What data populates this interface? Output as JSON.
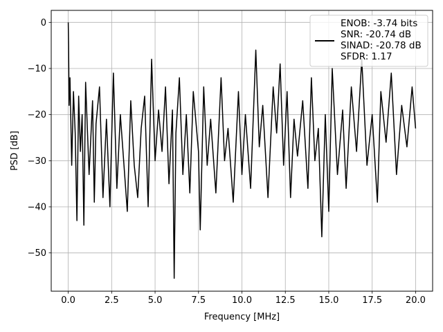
{
  "chart_data": {
    "type": "line",
    "title": "",
    "xlabel": "Frequency [MHz]",
    "ylabel": "PSD [dB]",
    "xlim": [
      -0.98,
      20.98
    ],
    "ylim": [
      -58.3,
      2.6
    ],
    "x_ticks": [
      0.0,
      2.5,
      5.0,
      7.5,
      10.0,
      12.5,
      15.0,
      17.5,
      20.0
    ],
    "x_tick_labels": [
      "0.0",
      "2.5",
      "5.0",
      "7.5",
      "10.0",
      "12.5",
      "15.0",
      "17.5",
      "20.0"
    ],
    "y_ticks": [
      0,
      -10,
      -20,
      -30,
      -40,
      -50
    ],
    "y_tick_labels": [
      "0",
      "−10",
      "−20",
      "−30",
      "−40",
      "−50"
    ],
    "grid": true,
    "legend_position": "top-right",
    "series": [
      {
        "name": "ENOB: -3.74 bits\nSNR: -20.74 dB\nSINAD: -20.78 dB\nSFDR: 1.17",
        "color": "#000000",
        "x": [
          0.0,
          0.02,
          0.05,
          0.1,
          0.2,
          0.3,
          0.4,
          0.5,
          0.6,
          0.7,
          0.8,
          0.9,
          1.0,
          1.2,
          1.4,
          1.5,
          1.6,
          1.8,
          2.0,
          2.2,
          2.4,
          2.5,
          2.6,
          2.8,
          3.0,
          3.4,
          3.6,
          3.8,
          4.0,
          4.2,
          4.4,
          4.6,
          4.8,
          5.0,
          5.2,
          5.4,
          5.6,
          5.8,
          6.0,
          6.1,
          6.2,
          6.4,
          6.6,
          6.8,
          7.0,
          7.2,
          7.5,
          7.6,
          7.8,
          8.0,
          8.2,
          8.5,
          8.8,
          9.0,
          9.2,
          9.5,
          9.8,
          10.0,
          10.2,
          10.5,
          10.8,
          11.0,
          11.2,
          11.5,
          11.8,
          12.0,
          12.2,
          12.4,
          12.6,
          12.8,
          13.0,
          13.2,
          13.5,
          13.8,
          14.0,
          14.2,
          14.4,
          14.6,
          14.8,
          15.0,
          15.2,
          15.5,
          15.8,
          16.0,
          16.3,
          16.6,
          16.9,
          17.2,
          17.5,
          17.8,
          18.0,
          18.3,
          18.6,
          18.9,
          19.2,
          19.5,
          19.8,
          20.0
        ],
        "y": [
          0.0,
          -5,
          -18,
          -12,
          -31,
          -15,
          -24,
          -43,
          -16,
          -28,
          -20,
          -44,
          -13,
          -33,
          -17,
          -39,
          -22,
          -14,
          -38,
          -21,
          -40,
          -25,
          -11,
          -36,
          -20,
          -41,
          -17,
          -31,
          -38,
          -23,
          -16,
          -40,
          -8,
          -30,
          -19,
          -28,
          -14,
          -35,
          -19,
          -55.5,
          -24,
          -12,
          -33,
          -20,
          -37,
          -15,
          -28,
          -45,
          -14,
          -31,
          -21,
          -37,
          -12,
          -30,
          -23,
          -39,
          -15,
          -33,
          -20,
          -36,
          -6,
          -27,
          -18,
          -38,
          -14,
          -24,
          -9,
          -31,
          -15,
          -38,
          -21,
          -29,
          -17,
          -36,
          -12,
          -30,
          -23,
          -46.5,
          -20,
          -41,
          -10,
          -33,
          -19,
          -36,
          -14,
          -28,
          -8,
          -31,
          -20,
          -39,
          -15,
          -26,
          -11,
          -33,
          -18,
          -27,
          -14,
          -23
        ]
      }
    ]
  }
}
